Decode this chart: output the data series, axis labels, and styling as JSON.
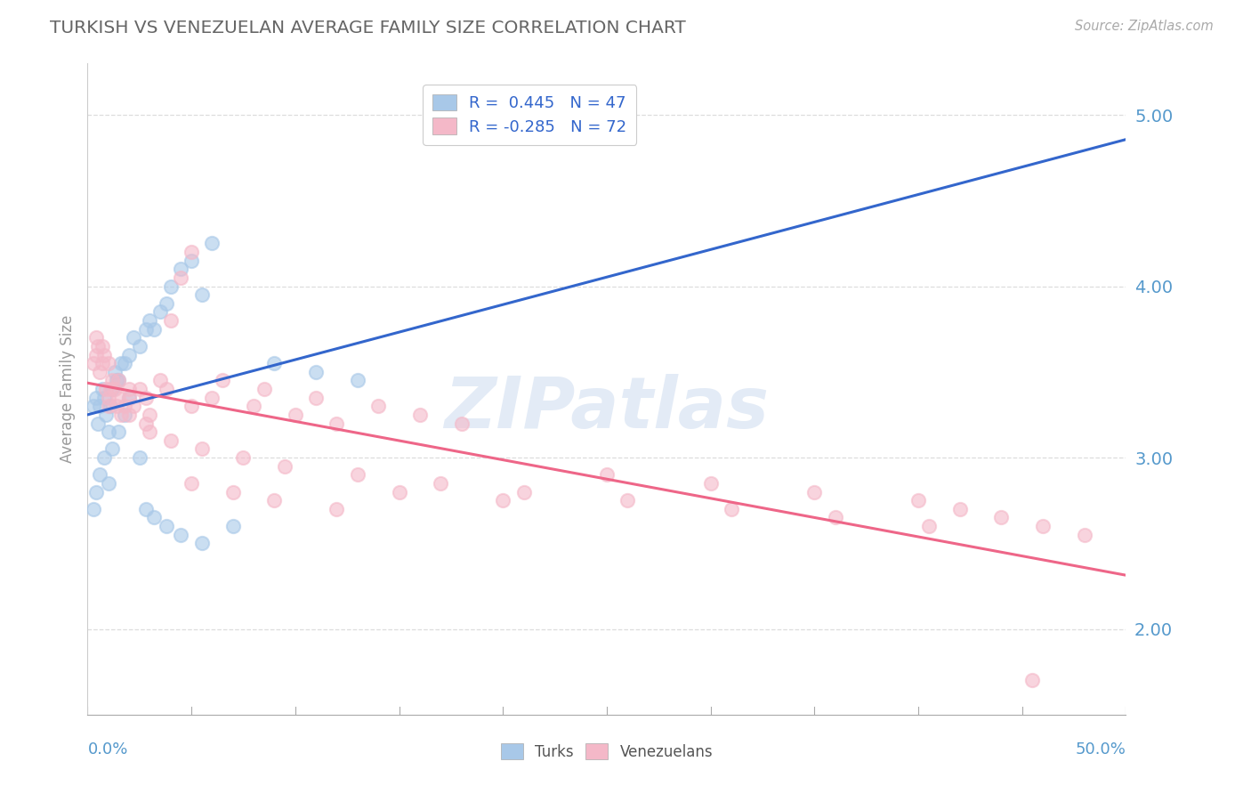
{
  "title": "TURKISH VS VENEZUELAN AVERAGE FAMILY SIZE CORRELATION CHART",
  "source_text": "Source: ZipAtlas.com",
  "ylabel": "Average Family Size",
  "xmin": 0.0,
  "xmax": 0.5,
  "ymin": 1.5,
  "ymax": 5.3,
  "yticks": [
    2.0,
    3.0,
    4.0,
    5.0
  ],
  "watermark": "ZIPatlas",
  "turk_color": "#a8c8e8",
  "venezu_color": "#f4b8c8",
  "turk_line_color": "#3366cc",
  "venezu_line_color": "#ee6688",
  "dashed_color": "#99bbdd",
  "grid_color": "#dddddd",
  "title_color": "#666666",
  "axis_label_color": "#5599cc",
  "background_color": "#ffffff",
  "legend_text_color": "#222222",
  "legend_num_color": "#3366cc",
  "turks_x": [
    0.003,
    0.004,
    0.005,
    0.006,
    0.007,
    0.008,
    0.009,
    0.01,
    0.011,
    0.012,
    0.013,
    0.014,
    0.015,
    0.016,
    0.018,
    0.02,
    0.022,
    0.025,
    0.028,
    0.03,
    0.032,
    0.035,
    0.038,
    0.04,
    0.045,
    0.05,
    0.055,
    0.06,
    0.003,
    0.004,
    0.006,
    0.008,
    0.01,
    0.012,
    0.015,
    0.018,
    0.02,
    0.025,
    0.028,
    0.032,
    0.038,
    0.045,
    0.055,
    0.07,
    0.09,
    0.11,
    0.13
  ],
  "turks_y": [
    3.3,
    3.35,
    3.2,
    3.3,
    3.4,
    3.35,
    3.25,
    3.15,
    3.3,
    3.4,
    3.5,
    3.45,
    3.45,
    3.55,
    3.55,
    3.6,
    3.7,
    3.65,
    3.75,
    3.8,
    3.75,
    3.85,
    3.9,
    4.0,
    4.1,
    4.15,
    3.95,
    4.25,
    2.7,
    2.8,
    2.9,
    3.0,
    2.85,
    3.05,
    3.15,
    3.25,
    3.35,
    3.0,
    2.7,
    2.65,
    2.6,
    2.55,
    2.5,
    2.6,
    3.55,
    3.5,
    3.45
  ],
  "venezu_x": [
    0.003,
    0.004,
    0.005,
    0.006,
    0.007,
    0.008,
    0.009,
    0.01,
    0.011,
    0.012,
    0.013,
    0.014,
    0.015,
    0.016,
    0.018,
    0.02,
    0.022,
    0.025,
    0.028,
    0.03,
    0.035,
    0.04,
    0.045,
    0.05,
    0.004,
    0.007,
    0.01,
    0.015,
    0.02,
    0.028,
    0.038,
    0.05,
    0.06,
    0.08,
    0.1,
    0.12,
    0.065,
    0.085,
    0.11,
    0.14,
    0.16,
    0.18,
    0.05,
    0.07,
    0.09,
    0.12,
    0.15,
    0.2,
    0.25,
    0.3,
    0.35,
    0.4,
    0.42,
    0.44,
    0.46,
    0.01,
    0.02,
    0.03,
    0.04,
    0.055,
    0.075,
    0.095,
    0.13,
    0.17,
    0.21,
    0.26,
    0.31,
    0.36,
    0.405,
    0.455,
    0.48
  ],
  "venezu_y": [
    3.55,
    3.6,
    3.65,
    3.5,
    3.55,
    3.6,
    3.4,
    3.35,
    3.4,
    3.45,
    3.4,
    3.3,
    3.35,
    3.25,
    3.3,
    3.35,
    3.3,
    3.4,
    3.2,
    3.25,
    3.45,
    3.8,
    4.05,
    4.2,
    3.7,
    3.65,
    3.55,
    3.45,
    3.4,
    3.35,
    3.4,
    3.3,
    3.35,
    3.3,
    3.25,
    3.2,
    3.45,
    3.4,
    3.35,
    3.3,
    3.25,
    3.2,
    2.85,
    2.8,
    2.75,
    2.7,
    2.8,
    2.75,
    2.9,
    2.85,
    2.8,
    2.75,
    2.7,
    2.65,
    2.6,
    3.3,
    3.25,
    3.15,
    3.1,
    3.05,
    3.0,
    2.95,
    2.9,
    2.85,
    2.8,
    2.75,
    2.7,
    2.65,
    2.6,
    1.7,
    2.55
  ]
}
